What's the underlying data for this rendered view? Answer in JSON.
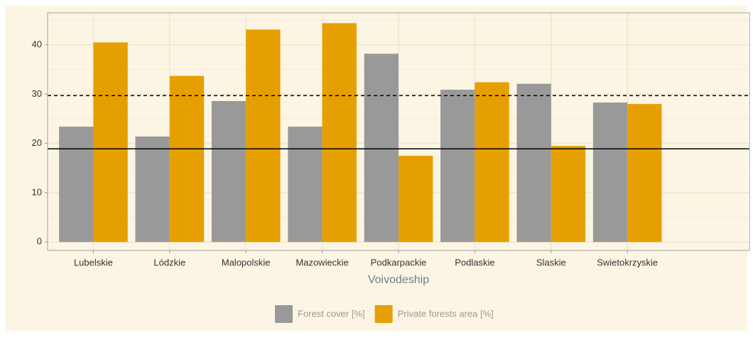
{
  "chart_data": {
    "type": "bar",
    "x_label": "Voivodeship",
    "categories": [
      "Lubelskie",
      "Lódzkie",
      "Malopolskie",
      "Mazowieckie",
      "Podkarpackie",
      "Podlaskie",
      "Slaskie",
      "Swietokrzyskie"
    ],
    "series": [
      {
        "name": "Forest cover [%]",
        "color": "#999999",
        "values": [
          23.4,
          21.4,
          28.6,
          23.4,
          38.2,
          30.9,
          32.1,
          28.3
        ]
      },
      {
        "name": "Private forests area [%]",
        "color": "#e69f00",
        "values": [
          40.5,
          33.7,
          43.1,
          44.4,
          17.5,
          32.4,
          19.5,
          28.0
        ]
      }
    ],
    "reference_lines": [
      {
        "value": 29.7,
        "style": "dashed",
        "color": "#000000"
      },
      {
        "value": 18.9,
        "style": "solid",
        "color": "#000000"
      }
    ],
    "ylim": [
      -1.7,
      46.5
    ],
    "yticks": [
      0,
      10,
      20,
      30,
      40
    ],
    "minor_yticks": [
      5,
      15,
      25,
      35,
      45
    ],
    "grid": true,
    "legend": "bottom"
  }
}
